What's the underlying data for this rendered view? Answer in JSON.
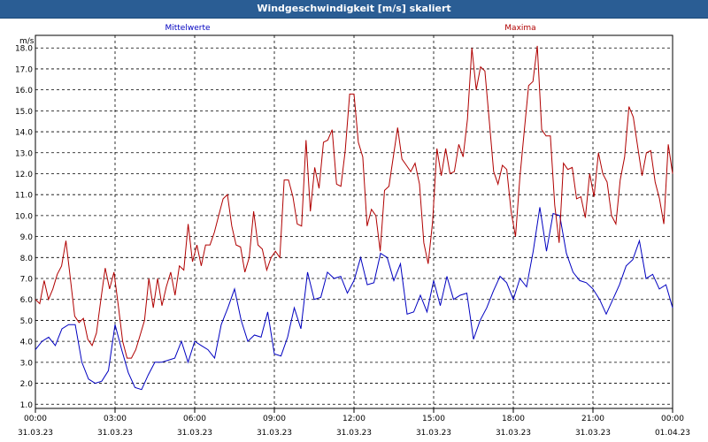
{
  "window": {
    "title": "Windgeschwindigkeit [m/s] skaliert"
  },
  "chart_data": {
    "type": "line",
    "title": "Windgeschwindigkeit [m/s] skaliert",
    "ylabel": "m/s",
    "ylim": [
      0.8,
      18.6
    ],
    "y_ticks": [
      "1.0",
      "2.0",
      "3.0",
      "4.0",
      "5.0",
      "6.0",
      "7.0",
      "8.0",
      "9.0",
      "10.0",
      "11.0",
      "12.0",
      "13.0",
      "14.0",
      "15.0",
      "16.0",
      "17.0",
      "18.0"
    ],
    "x_ticks": [
      {
        "time": "00:00",
        "date": "31.03.23"
      },
      {
        "time": "03:00",
        "date": "31.03.23"
      },
      {
        "time": "06:00",
        "date": "31.03.23"
      },
      {
        "time": "09:00",
        "date": "31.03.23"
      },
      {
        "time": "12:00",
        "date": "31.03.23"
      },
      {
        "time": "15:00",
        "date": "31.03.23"
      },
      {
        "time": "18:00",
        "date": "31.03.23"
      },
      {
        "time": "21:00",
        "date": "31.03.23"
      },
      {
        "time": "00:00",
        "date": "01.04.23"
      }
    ],
    "grid": true,
    "legend_position": "top",
    "series": [
      {
        "name": "Mittelwerte",
        "color": "#0000c0",
        "x": [
          0.0,
          0.25,
          0.5,
          0.75,
          1.0,
          1.25,
          1.5,
          1.75,
          2.0,
          2.25,
          2.5,
          2.75,
          3.0,
          3.25,
          3.5,
          3.75,
          4.0,
          4.25,
          4.5,
          4.75,
          5.0,
          5.25,
          5.5,
          5.75,
          6.0,
          6.25,
          6.5,
          6.75,
          7.0,
          7.25,
          7.5,
          7.75,
          8.0,
          8.25,
          8.5,
          8.75,
          9.0,
          9.25,
          9.5,
          9.75,
          10.0,
          10.25,
          10.5,
          10.75,
          11.0,
          11.25,
          11.5,
          11.75,
          12.0,
          12.25,
          12.5,
          12.75,
          13.0,
          13.25,
          13.5,
          13.75,
          14.0,
          14.25,
          14.5,
          14.75,
          15.0,
          15.25,
          15.5,
          15.75,
          16.0,
          16.25,
          16.5,
          16.75,
          17.0,
          17.25,
          17.5,
          17.75,
          18.0,
          18.25,
          18.5,
          18.75,
          19.0,
          19.25,
          19.5,
          19.75,
          20.0,
          20.25,
          20.5,
          20.75,
          21.0,
          21.25,
          21.5,
          21.75,
          22.0,
          22.25,
          22.5,
          22.75,
          23.0,
          23.25,
          23.5,
          23.75,
          24.0
        ],
        "values": [
          3.6,
          4.0,
          4.2,
          3.8,
          4.6,
          4.8,
          4.8,
          3.0,
          2.2,
          2.0,
          2.1,
          2.6,
          4.8,
          3.6,
          2.5,
          1.8,
          1.7,
          2.4,
          3.0,
          3.0,
          3.1,
          3.2,
          4.0,
          3.0,
          4.0,
          3.8,
          3.6,
          3.2,
          4.8,
          5.6,
          6.5,
          5.0,
          4.0,
          4.3,
          4.2,
          5.4,
          3.4,
          3.3,
          4.2,
          5.6,
          4.6,
          7.3,
          6.0,
          6.1,
          7.3,
          7.0,
          7.1,
          6.3,
          6.9,
          8.0,
          6.7,
          6.8,
          8.2,
          8.0,
          6.9,
          7.7,
          5.3,
          5.4,
          6.2,
          5.4,
          6.9,
          5.7,
          7.1,
          6.0,
          6.2,
          6.3,
          4.1,
          5.0,
          5.6,
          6.4,
          7.1,
          6.8,
          6.0,
          7.0,
          6.6,
          8.3,
          10.4,
          8.3,
          10.1,
          10.0,
          8.2,
          7.3,
          6.9,
          6.8,
          6.5,
          6.0,
          5.3,
          6.0,
          6.7,
          7.6,
          7.9,
          8.8,
          7.0,
          7.2,
          6.5,
          6.7,
          5.6
        ],
        "values_scale_note": ""
      },
      {
        "name": "Maxima",
        "color": "#b00000",
        "x": [],
        "values": []
      }
    ]
  }
}
